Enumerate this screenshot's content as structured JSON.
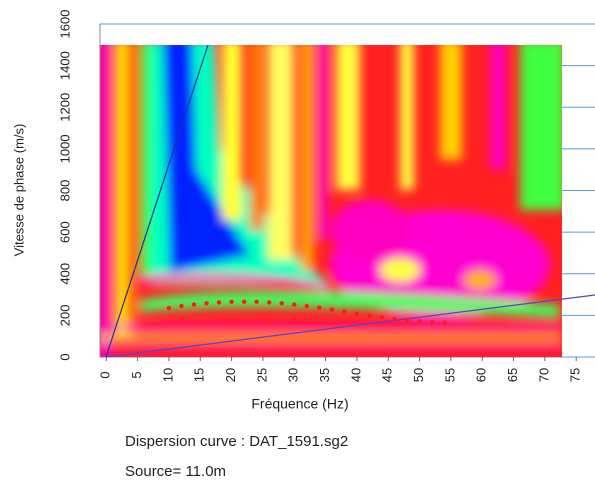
{
  "chart_data": {
    "type": "scatter",
    "xlabel": "Fréquence (Hz)",
    "ylabel": "Vitesse de phase (m/s)",
    "caption": "Dispersion curve : DAT_1591.sg2",
    "source": "Source= 11.0m",
    "x": [
      10,
      12,
      14,
      16,
      18,
      20,
      22,
      24,
      26,
      28,
      30,
      32,
      34,
      36,
      38,
      40,
      42,
      44,
      46,
      48,
      50,
      52,
      54
    ],
    "values": [
      235,
      245,
      252,
      258,
      262,
      265,
      266,
      265,
      262,
      258,
      252,
      245,
      237,
      228,
      218,
      208,
      198,
      190,
      183,
      177,
      172,
      168,
      165
    ],
    "color": "#ff1a1a",
    "xlim": [
      -1,
      78
    ],
    "ylim": [
      0,
      1600
    ],
    "xticks": [
      0,
      5,
      10,
      15,
      20,
      25,
      30,
      35,
      40,
      45,
      50,
      55,
      60,
      65,
      70,
      75
    ],
    "yticks": [
      0,
      200,
      400,
      600,
      800,
      1000,
      1200,
      1400,
      1600
    ],
    "grid": true,
    "grid_color": "#5b9bd5"
  }
}
